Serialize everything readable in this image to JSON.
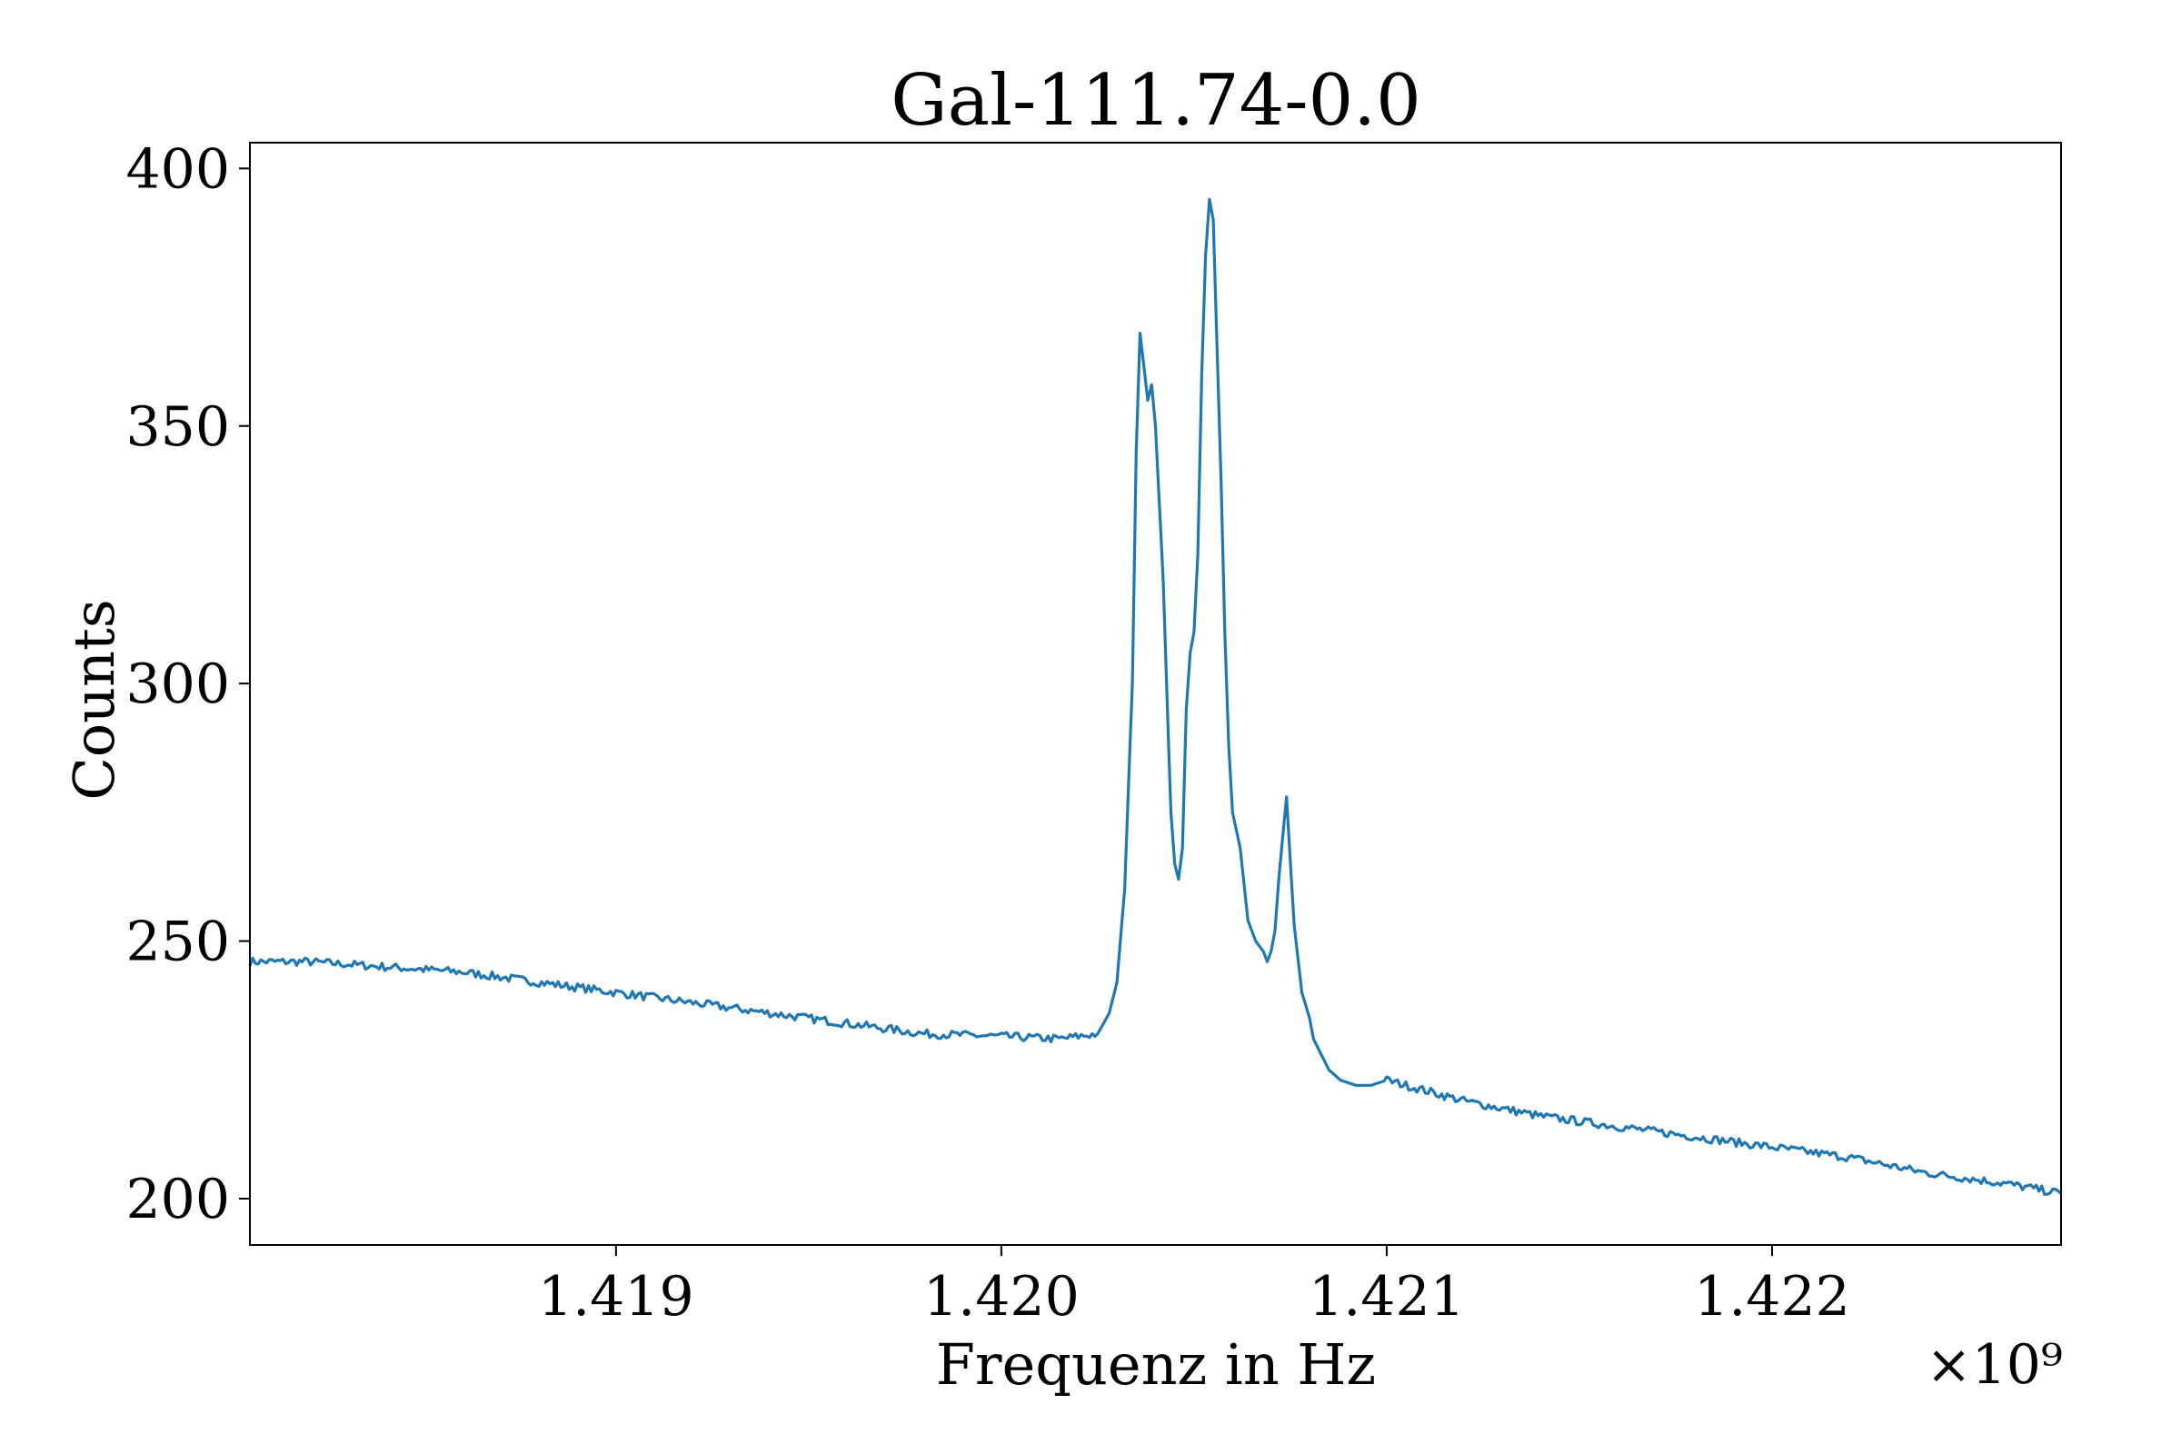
{
  "chart_data": {
    "type": "line",
    "title": "Gal-111.74-0.0",
    "xlabel": "Frequenz in Hz",
    "ylabel": "Counts",
    "x_offset_label": "×10⁹",
    "xlim": [
      1.41805,
      1.42275
    ],
    "ylim": [
      191,
      405
    ],
    "xticks": [
      1.419,
      1.42,
      1.421,
      1.422
    ],
    "xtick_labels": [
      "1.419",
      "1.420",
      "1.421",
      "1.422"
    ],
    "yticks": [
      200,
      250,
      300,
      350,
      400
    ],
    "ytick_labels": [
      "200",
      "250",
      "300",
      "350",
      "400"
    ],
    "grid": false,
    "series": [
      {
        "color": "#1f77b4",
        "x": [
          1.41805,
          1.4182,
          1.4184,
          1.4186,
          1.4188,
          1.419,
          1.4192,
          1.4194,
          1.4196,
          1.4198,
          1.42,
          1.42015,
          1.42025,
          1.42028,
          1.4203,
          1.42032,
          1.42034,
          1.42035,
          1.42036,
          1.42038,
          1.42039,
          1.4204,
          1.42042,
          1.42044,
          1.42045,
          1.42046,
          1.42047,
          1.42048,
          1.42049,
          1.4205,
          1.42051,
          1.42052,
          1.42053,
          1.42054,
          1.42055,
          1.42056,
          1.42057,
          1.42058,
          1.42059,
          1.4206,
          1.42062,
          1.42064,
          1.42066,
          1.42068,
          1.42069,
          1.4207,
          1.42071,
          1.42072,
          1.42073,
          1.42074,
          1.42076,
          1.42078,
          1.4208,
          1.42081,
          1.42083,
          1.42085,
          1.42088,
          1.42092,
          1.42096,
          1.421,
          1.4212,
          1.4214,
          1.4216,
          1.4218,
          1.422,
          1.4222,
          1.4224,
          1.4226,
          1.42275
        ],
        "y": [
          246,
          246,
          245,
          244,
          242,
          240,
          238,
          236,
          234,
          232,
          231.5,
          231,
          232,
          236,
          242,
          260,
          300,
          345,
          368,
          355,
          358,
          350,
          320,
          275,
          265,
          262,
          268,
          295,
          306,
          310,
          325,
          360,
          383,
          394,
          390,
          365,
          340,
          310,
          288,
          275,
          268,
          254,
          250,
          248,
          246,
          248,
          252,
          262,
          270,
          278,
          253,
          240,
          235,
          231,
          228,
          225,
          223,
          222,
          222,
          223,
          219,
          216,
          214,
          212,
          210,
          208,
          205,
          203,
          201
        ]
      }
    ]
  }
}
